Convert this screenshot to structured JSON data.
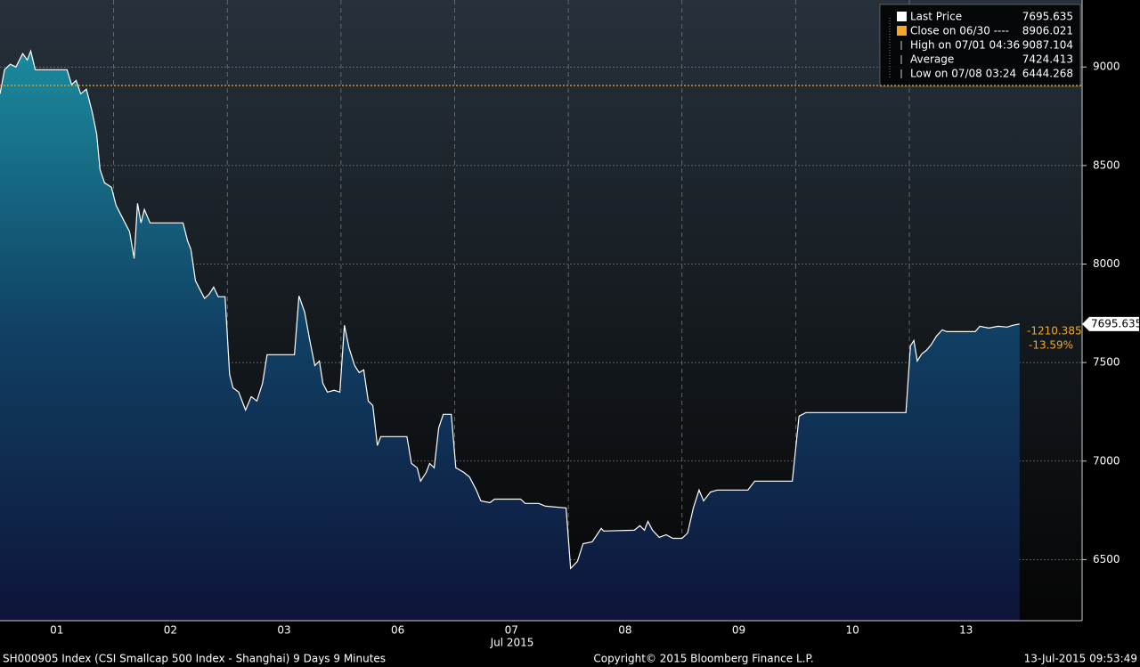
{
  "chart_data": {
    "type": "area",
    "series": [
      {
        "name": "Last Price",
        "color": "#ffffff",
        "x": [
          0,
          0.04,
          0.09,
          0.14,
          0.2,
          0.24,
          0.27,
          0.31,
          0.59,
          0.63,
          0.67,
          0.71,
          0.76,
          0.81,
          0.85,
          0.88,
          0.92,
          0.98,
          1.02,
          1.06,
          1.1,
          1.14,
          1.18,
          1.21,
          1.24,
          1.27,
          1.32,
          1.37,
          1.61,
          1.65,
          1.68,
          1.72,
          1.76,
          1.8,
          1.84,
          1.88,
          1.92,
          1.98,
          2.02,
          2.05,
          2.1,
          2.16,
          2.21,
          2.26,
          2.31,
          2.35,
          2.59,
          2.63,
          2.68,
          2.73,
          2.77,
          2.81,
          2.84,
          2.88,
          2.94,
          2.99,
          3.03,
          3.07,
          3.12,
          3.16,
          3.2,
          3.24,
          3.28,
          3.32,
          3.35,
          3.58,
          3.62,
          3.67,
          3.7,
          3.75,
          3.78,
          3.82,
          3.86,
          3.9,
          3.97,
          4.01,
          4.08,
          4.13,
          4.19,
          4.23,
          4.31,
          4.35,
          4.58,
          4.62,
          4.74,
          4.8,
          4.98,
          5.02,
          5.08,
          5.13,
          5.21,
          5.29,
          5.31,
          5.58,
          5.63,
          5.67,
          5.7,
          5.74,
          5.8,
          5.86,
          5.92,
          6.0,
          6.05,
          6.1,
          6.15,
          6.19,
          6.25,
          6.31,
          6.58,
          6.64,
          6.97,
          7.03,
          7.09,
          7.97,
          8.01,
          8.04,
          8.07,
          8.11,
          8.15,
          8.19,
          8.24,
          8.29,
          8.33,
          8.58,
          8.62,
          8.7,
          8.78,
          8.86,
          8.91,
          8.97
        ],
        "values": [
          8864,
          8986,
          9014,
          9000,
          9068,
          9036,
          9081,
          8986,
          8986,
          8910,
          8932,
          8864,
          8887,
          8774,
          8661,
          8480,
          8412,
          8390,
          8299,
          8254,
          8209,
          8164,
          8028,
          8308,
          8209,
          8277,
          8209,
          8209,
          8209,
          8118,
          8073,
          7915,
          7870,
          7825,
          7847,
          7883,
          7834,
          7834,
          7440,
          7372,
          7350,
          7259,
          7327,
          7305,
          7395,
          7540,
          7540,
          7838,
          7757,
          7599,
          7485,
          7508,
          7395,
          7350,
          7359,
          7350,
          7689,
          7576,
          7485,
          7449,
          7463,
          7305,
          7282,
          7079,
          7124,
          7124,
          6988,
          6966,
          6898,
          6943,
          6988,
          6966,
          7169,
          7237,
          7237,
          6966,
          6943,
          6920,
          6853,
          6798,
          6789,
          6807,
          6807,
          6785,
          6785,
          6771,
          6762,
          6455,
          6491,
          6581,
          6590,
          6658,
          6645,
          6649,
          6672,
          6649,
          6694,
          6649,
          6613,
          6626,
          6608,
          6608,
          6635,
          6762,
          6853,
          6798,
          6843,
          6853,
          6853,
          6898,
          6898,
          7228,
          7246,
          7246,
          7585,
          7612,
          7508,
          7544,
          7562,
          7589,
          7635,
          7666,
          7657,
          7657,
          7684,
          7675,
          7684,
          7680,
          7689,
          7695.635
        ]
      }
    ],
    "close_color": "#f5a623",
    "legend": [
      {
        "label": "Last Price",
        "value": 7695.635
      },
      {
        "label": "Close on 06/30 ----",
        "value": 8906.021
      },
      {
        "label": "High on 07/01 04:36",
        "value": 9087.104
      },
      {
        "label": "Average",
        "value": 7424.413
      },
      {
        "label": "Low on 07/08 03:24",
        "value": 6444.268
      }
    ],
    "annotations": [
      "-1210.385",
      "-13.59%"
    ],
    "x_label": "Jul 2015",
    "xlim": [
      0,
      9.52
    ],
    "xticks": [
      {
        "value": 0.5,
        "label": "01"
      },
      {
        "value": 1.5,
        "label": "02"
      },
      {
        "value": 2.5,
        "label": "03"
      },
      {
        "value": 3.5,
        "label": "06"
      },
      {
        "value": 4.5,
        "label": "07"
      },
      {
        "value": 5.5,
        "label": "08"
      },
      {
        "value": 6.5,
        "label": "09"
      },
      {
        "value": 7.5,
        "label": "10"
      },
      {
        "value": 8.5,
        "label": "13"
      }
    ],
    "ylim": [
      6190,
      9340
    ],
    "yticks": [
      6500,
      7000,
      7500,
      8000,
      8500,
      9000
    ],
    "grid": true,
    "footer": [
      "SH000905 Index (CSI Smallcap 500 Index - Shanghai) 9 Days 9 Minutes",
      "Copyright© 2015 Bloomberg Finance L.P.",
      "13-Jul-2015 09:53:49"
    ]
  }
}
